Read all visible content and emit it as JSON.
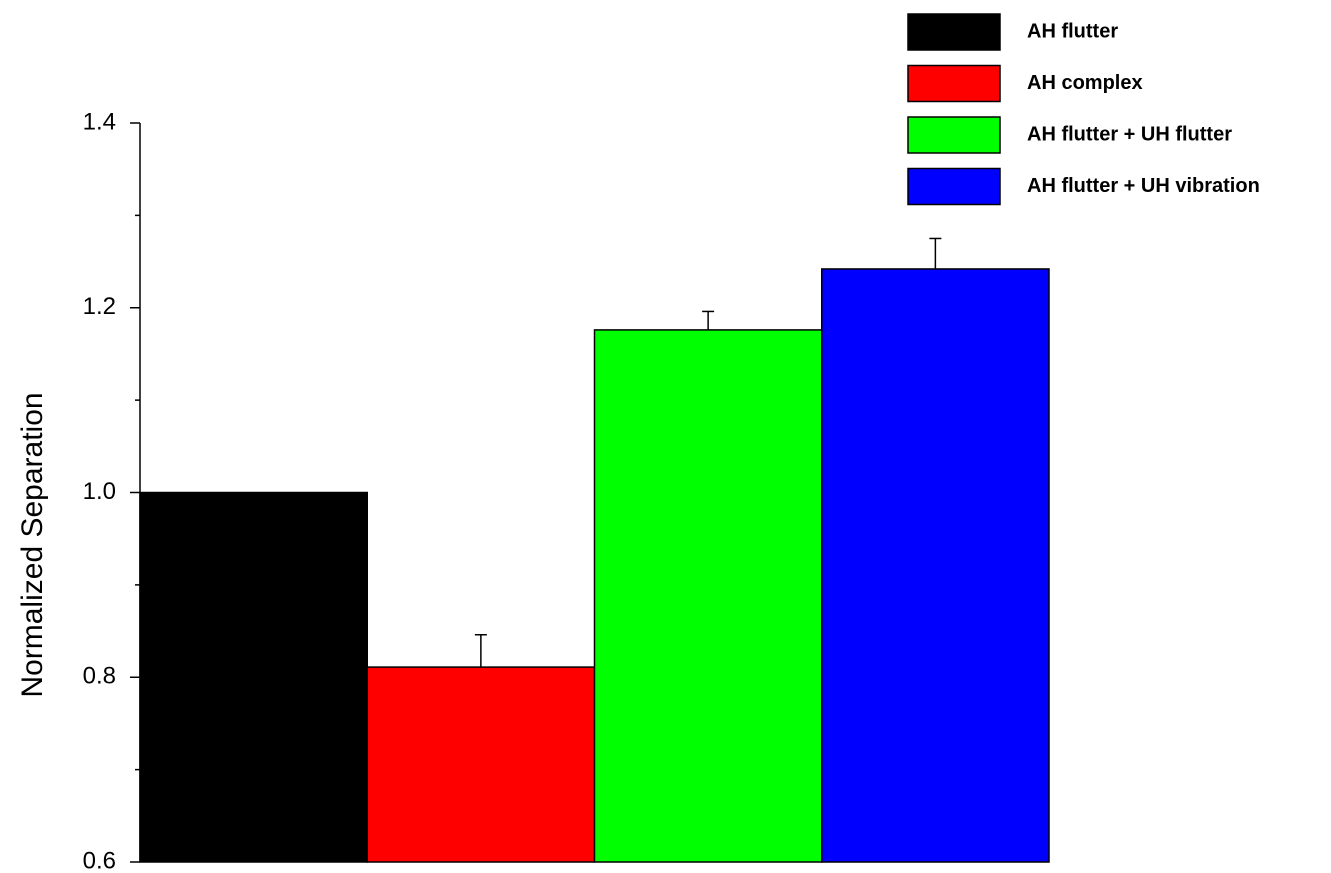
{
  "chart_data": {
    "type": "bar",
    "ylabel": "Normalized Separation",
    "ylim": [
      0.6,
      1.4
    ],
    "yticks": [
      0.6,
      0.8,
      {
        "value": 1,
        "label": "1.0"
      },
      1.2,
      1.4
    ],
    "yminorticks": [
      0.7,
      0.9,
      1.1,
      1.3
    ],
    "series": [
      {
        "name": "AH flutter",
        "color": "#000000",
        "values": [
          1.0
        ]
      },
      {
        "name": "AH complex",
        "color": "#ff0000",
        "values": [
          0.811
        ],
        "errors": [
          0.035
        ]
      },
      {
        "name": "AH flutter + UH flutter",
        "color": "#00ff00",
        "values": [
          1.176
        ],
        "errors": [
          0.02
        ]
      },
      {
        "name": "AH flutter + UH vibration",
        "color": "#0000ff",
        "values": [
          1.242
        ],
        "errors": [
          0.033
        ]
      }
    ]
  }
}
